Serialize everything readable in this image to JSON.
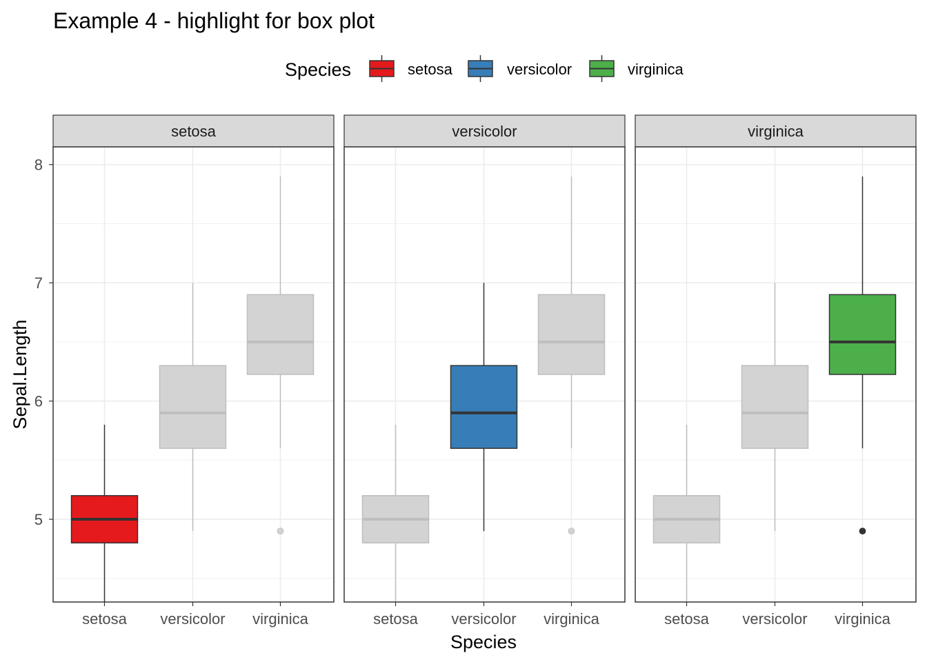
{
  "chart_data": {
    "type": "box",
    "title": "Example 4 - highlight for box plot",
    "xlabel": "Species",
    "ylabel": "Sepal.Length",
    "ylim": [
      4.3,
      8.15
    ],
    "yticks": [
      5,
      6,
      7,
      8
    ],
    "grid": true,
    "legend": {
      "title": "Species",
      "position": "top",
      "entries": [
        "setosa",
        "versicolor",
        "virginica"
      ]
    },
    "facets": [
      "setosa",
      "versicolor",
      "virginica"
    ],
    "categories": [
      "setosa",
      "versicolor",
      "virginica"
    ],
    "colors": {
      "setosa": "#E41A1C",
      "versicolor": "#377EB8",
      "virginica": "#4DAF4A",
      "muted_fill": "#D3D3D3",
      "muted_line": "#BEBEBE",
      "outline": "#333333"
    },
    "boxes": [
      {
        "species": "setosa",
        "lower_whisker": 4.3,
        "q1": 4.8,
        "median": 5.0,
        "q3": 5.2,
        "upper_whisker": 5.8,
        "outliers": []
      },
      {
        "species": "versicolor",
        "lower_whisker": 4.9,
        "q1": 5.6,
        "median": 5.9,
        "q3": 6.3,
        "upper_whisker": 7.0,
        "outliers": []
      },
      {
        "species": "virginica",
        "lower_whisker": 5.6,
        "q1": 6.225,
        "median": 6.5,
        "q3": 6.9,
        "upper_whisker": 7.9,
        "outliers": [
          4.9
        ]
      }
    ]
  }
}
